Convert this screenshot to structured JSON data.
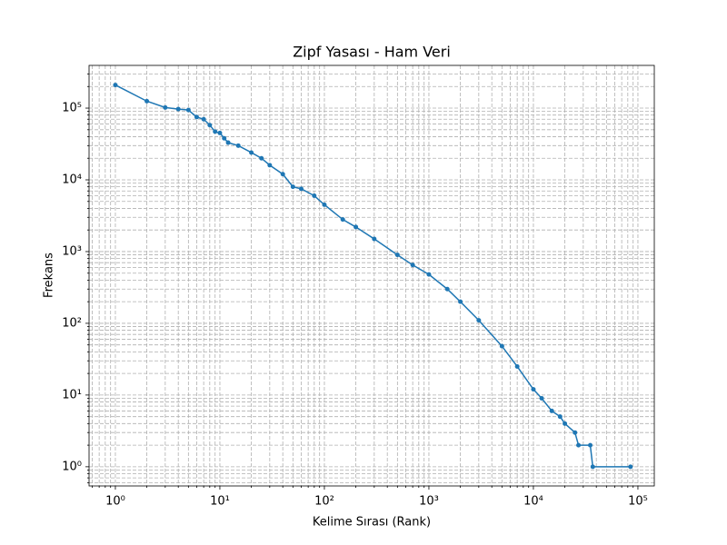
{
  "chart_data": {
    "type": "line",
    "title": "Zipf Yasası - Ham Veri",
    "xlabel": "Kelime Sırası (Rank)",
    "ylabel": "Frekans",
    "x": [
      1,
      2,
      3,
      4,
      5,
      6,
      7,
      8,
      9,
      10,
      11,
      12,
      15,
      20,
      25,
      30,
      40,
      50,
      60,
      80,
      100,
      150,
      200,
      300,
      500,
      700,
      1000,
      1500,
      2000,
      3000,
      5000,
      7000,
      10000,
      12000,
      15000,
      18000,
      20000,
      25000,
      27000,
      35000,
      37000,
      85000
    ],
    "values": [
      210000,
      125000,
      102000,
      97000,
      94000,
      75000,
      70000,
      58000,
      47000,
      45000,
      38000,
      33000,
      30000,
      24000,
      20000,
      16000,
      12000,
      8000,
      7500,
      6000,
      4500,
      2800,
      2200,
      1500,
      900,
      650,
      480,
      300,
      200,
      110,
      48,
      25,
      12,
      9,
      6,
      5,
      4,
      3,
      2,
      2,
      1,
      1
    ],
    "color": "#1f77b4",
    "xscale": "log",
    "yscale": "log",
    "xlim": [
      0.56,
      143500
    ],
    "ylim": [
      0.54,
      394000
    ],
    "xticks": [
      {
        "value": 1,
        "label": "10⁰"
      },
      {
        "value": 10,
        "label": "10¹"
      },
      {
        "value": 100,
        "label": "10²"
      },
      {
        "value": 1000,
        "label": "10³"
      },
      {
        "value": 10000,
        "label": "10⁴"
      },
      {
        "value": 100000,
        "label": "10⁵"
      }
    ],
    "yticks": [
      {
        "value": 1,
        "label": "10⁰"
      },
      {
        "value": 10,
        "label": "10¹"
      },
      {
        "value": 100,
        "label": "10²"
      },
      {
        "value": 1000,
        "label": "10³"
      },
      {
        "value": 10000,
        "label": "10⁴"
      },
      {
        "value": 100000,
        "label": "10⁵"
      }
    ],
    "xminorticks": [
      0.6,
      0.7,
      0.8,
      0.9,
      2,
      3,
      4,
      5,
      6,
      7,
      8,
      9,
      20,
      30,
      40,
      50,
      60,
      70,
      80,
      90,
      200,
      300,
      400,
      500,
      600,
      700,
      800,
      900,
      2000,
      3000,
      4000,
      5000,
      6000,
      7000,
      8000,
      9000,
      20000,
      30000,
      40000,
      50000,
      60000,
      70000,
      80000,
      90000
    ],
    "yminorticks": [
      0.6,
      0.7,
      0.8,
      0.9,
      2,
      3,
      4,
      5,
      6,
      7,
      8,
      9,
      20,
      30,
      40,
      50,
      60,
      70,
      80,
      90,
      200,
      300,
      400,
      500,
      600,
      700,
      800,
      900,
      2000,
      3000,
      4000,
      5000,
      6000,
      7000,
      8000,
      9000,
      20000,
      30000,
      40000,
      50000,
      60000,
      70000,
      80000,
      90000,
      200000,
      300000
    ],
    "grid": true
  }
}
